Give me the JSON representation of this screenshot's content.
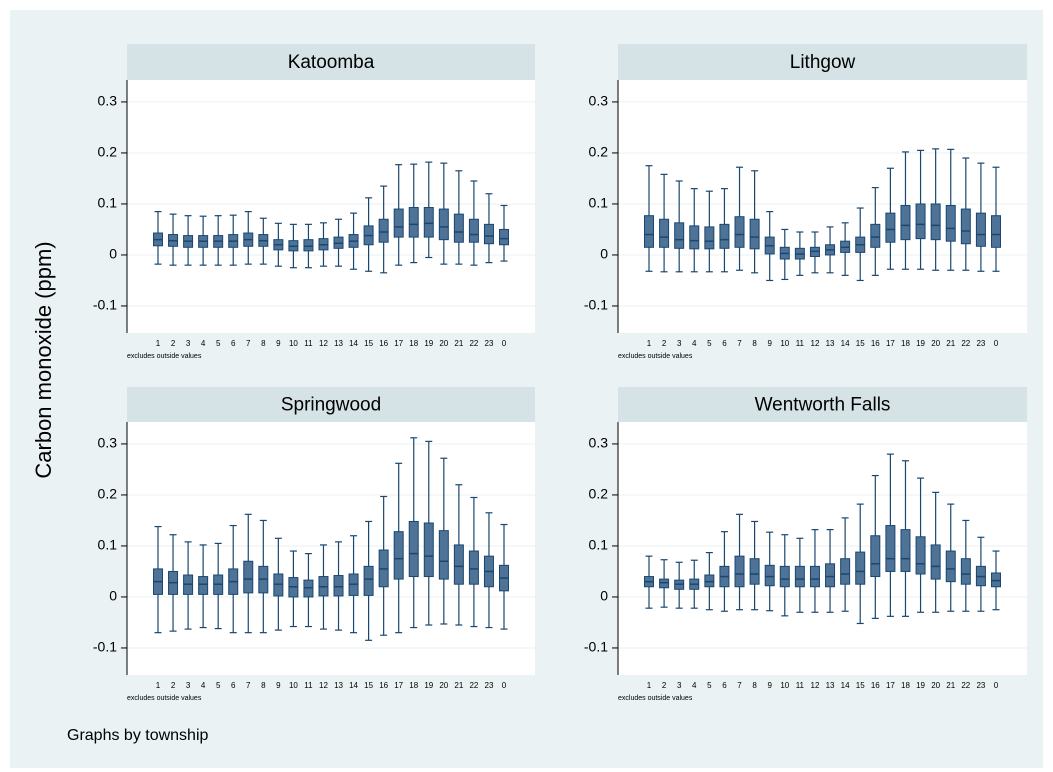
{
  "chart_data": {
    "type": "box",
    "ytitle": "Carbon monoxide (ppm)",
    "note": "Graphs by township",
    "categories": [
      "1",
      "2",
      "3",
      "4",
      "5",
      "6",
      "7",
      "8",
      "9",
      "10",
      "11",
      "12",
      "13",
      "14",
      "15",
      "16",
      "17",
      "18",
      "19",
      "20",
      "21",
      "22",
      "23",
      "0"
    ],
    "ylim": [
      -0.153,
      0.343
    ],
    "yticks": [
      -0.1,
      0,
      0.1,
      0.2,
      0.3
    ],
    "grid": true,
    "color": "#4e7397",
    "edge": "#1a476f",
    "panels": [
      {
        "title": "Katoomba",
        "note": "excludes outside values",
        "whisker_low": [
          -0.018,
          -0.02,
          -0.02,
          -0.02,
          -0.02,
          -0.02,
          -0.018,
          -0.018,
          -0.022,
          -0.025,
          -0.025,
          -0.022,
          -0.022,
          -0.028,
          -0.032,
          -0.035,
          -0.02,
          -0.015,
          -0.005,
          -0.018,
          -0.018,
          -0.02,
          -0.015,
          -0.012
        ],
        "q1": [
          0.018,
          0.017,
          0.015,
          0.015,
          0.015,
          0.015,
          0.017,
          0.017,
          0.01,
          0.008,
          0.008,
          0.01,
          0.013,
          0.015,
          0.02,
          0.025,
          0.035,
          0.035,
          0.035,
          0.03,
          0.025,
          0.025,
          0.022,
          0.02
        ],
        "median": [
          0.03,
          0.028,
          0.027,
          0.027,
          0.027,
          0.027,
          0.03,
          0.028,
          0.02,
          0.017,
          0.017,
          0.02,
          0.023,
          0.027,
          0.038,
          0.045,
          0.055,
          0.06,
          0.062,
          0.055,
          0.045,
          0.04,
          0.037,
          0.032
        ],
        "q3": [
          0.043,
          0.04,
          0.038,
          0.038,
          0.038,
          0.04,
          0.043,
          0.04,
          0.03,
          0.028,
          0.03,
          0.032,
          0.035,
          0.04,
          0.057,
          0.07,
          0.09,
          0.093,
          0.093,
          0.09,
          0.08,
          0.07,
          0.06,
          0.05
        ],
        "whisker_high": [
          0.085,
          0.08,
          0.077,
          0.076,
          0.077,
          0.078,
          0.085,
          0.072,
          0.062,
          0.06,
          0.06,
          0.063,
          0.07,
          0.082,
          0.112,
          0.135,
          0.177,
          0.178,
          0.182,
          0.18,
          0.165,
          0.145,
          0.12,
          0.097
        ]
      },
      {
        "title": "Lithgow",
        "note": "excludes outside values",
        "whisker_low": [
          -0.032,
          -0.033,
          -0.033,
          -0.033,
          -0.033,
          -0.033,
          -0.03,
          -0.035,
          -0.05,
          -0.048,
          -0.04,
          -0.035,
          -0.035,
          -0.04,
          -0.05,
          -0.04,
          -0.028,
          -0.028,
          -0.028,
          -0.03,
          -0.03,
          -0.03,
          -0.032,
          -0.032
        ],
        "q1": [
          0.015,
          0.015,
          0.013,
          0.012,
          0.012,
          0.013,
          0.015,
          0.012,
          0.002,
          -0.008,
          -0.008,
          -0.003,
          0,
          0.005,
          0.005,
          0.015,
          0.025,
          0.03,
          0.032,
          0.03,
          0.027,
          0.022,
          0.017,
          0.015
        ],
        "median": [
          0.04,
          0.035,
          0.03,
          0.028,
          0.027,
          0.03,
          0.04,
          0.035,
          0.018,
          0.003,
          0.002,
          0.007,
          0.01,
          0.015,
          0.02,
          0.035,
          0.05,
          0.058,
          0.06,
          0.058,
          0.052,
          0.047,
          0.04,
          0.04
        ],
        "q3": [
          0.077,
          0.07,
          0.063,
          0.057,
          0.055,
          0.06,
          0.075,
          0.07,
          0.035,
          0.015,
          0.013,
          0.015,
          0.02,
          0.027,
          0.035,
          0.06,
          0.082,
          0.097,
          0.1,
          0.1,
          0.097,
          0.09,
          0.082,
          0.077
        ],
        "whisker_high": [
          0.175,
          0.158,
          0.145,
          0.13,
          0.125,
          0.13,
          0.172,
          0.165,
          0.085,
          0.05,
          0.045,
          0.045,
          0.055,
          0.063,
          0.092,
          0.132,
          0.17,
          0.202,
          0.205,
          0.208,
          0.207,
          0.19,
          0.18,
          0.172
        ]
      },
      {
        "title": "Springwood",
        "note": "excludes outside values",
        "whisker_low": [
          -0.07,
          -0.067,
          -0.063,
          -0.06,
          -0.062,
          -0.07,
          -0.07,
          -0.07,
          -0.065,
          -0.058,
          -0.058,
          -0.063,
          -0.065,
          -0.07,
          -0.085,
          -0.075,
          -0.07,
          -0.06,
          -0.055,
          -0.053,
          -0.055,
          -0.058,
          -0.06,
          -0.063
        ],
        "q1": [
          0.005,
          0.005,
          0.005,
          0.005,
          0.005,
          0.005,
          0.008,
          0.008,
          0.002,
          0,
          0,
          0.002,
          0.002,
          0.003,
          0.003,
          0.02,
          0.035,
          0.04,
          0.04,
          0.035,
          0.025,
          0.025,
          0.02,
          0.012
        ],
        "median": [
          0.03,
          0.028,
          0.025,
          0.025,
          0.025,
          0.03,
          0.035,
          0.035,
          0.025,
          0.02,
          0.018,
          0.02,
          0.02,
          0.025,
          0.035,
          0.055,
          0.075,
          0.085,
          0.08,
          0.07,
          0.06,
          0.055,
          0.05,
          0.037
        ],
        "q3": [
          0.055,
          0.05,
          0.043,
          0.04,
          0.043,
          0.055,
          0.07,
          0.06,
          0.045,
          0.038,
          0.033,
          0.04,
          0.042,
          0.045,
          0.06,
          0.092,
          0.128,
          0.148,
          0.145,
          0.13,
          0.102,
          0.09,
          0.08,
          0.062
        ],
        "whisker_high": [
          0.138,
          0.122,
          0.108,
          0.102,
          0.105,
          0.14,
          0.162,
          0.15,
          0.115,
          0.09,
          0.085,
          0.102,
          0.108,
          0.12,
          0.148,
          0.197,
          0.262,
          0.312,
          0.305,
          0.272,
          0.22,
          0.195,
          0.165,
          0.142
        ]
      },
      {
        "title": "Wentworth Falls",
        "note": "excludes outside values",
        "whisker_low": [
          -0.022,
          -0.02,
          -0.022,
          -0.022,
          -0.025,
          -0.028,
          -0.025,
          -0.025,
          -0.027,
          -0.037,
          -0.03,
          -0.03,
          -0.03,
          -0.028,
          -0.052,
          -0.042,
          -0.038,
          -0.038,
          -0.03,
          -0.03,
          -0.028,
          -0.028,
          -0.028,
          -0.025
        ],
        "q1": [
          0.02,
          0.018,
          0.015,
          0.015,
          0.02,
          0.02,
          0.02,
          0.025,
          0.022,
          0.02,
          0.02,
          0.02,
          0.02,
          0.025,
          0.025,
          0.04,
          0.05,
          0.05,
          0.045,
          0.035,
          0.03,
          0.025,
          0.022,
          0.02
        ],
        "median": [
          0.03,
          0.028,
          0.025,
          0.025,
          0.03,
          0.04,
          0.045,
          0.045,
          0.04,
          0.035,
          0.035,
          0.035,
          0.04,
          0.045,
          0.05,
          0.065,
          0.075,
          0.075,
          0.065,
          0.06,
          0.055,
          0.045,
          0.04,
          0.032
        ],
        "q3": [
          0.04,
          0.035,
          0.033,
          0.035,
          0.043,
          0.06,
          0.08,
          0.075,
          0.062,
          0.06,
          0.06,
          0.06,
          0.065,
          0.075,
          0.088,
          0.12,
          0.14,
          0.132,
          0.118,
          0.102,
          0.09,
          0.075,
          0.06,
          0.047
        ],
        "whisker_high": [
          0.08,
          0.073,
          0.068,
          0.072,
          0.087,
          0.128,
          0.162,
          0.148,
          0.127,
          0.122,
          0.115,
          0.132,
          0.132,
          0.155,
          0.182,
          0.238,
          0.28,
          0.267,
          0.233,
          0.205,
          0.182,
          0.15,
          0.117,
          0.09
        ]
      }
    ]
  }
}
